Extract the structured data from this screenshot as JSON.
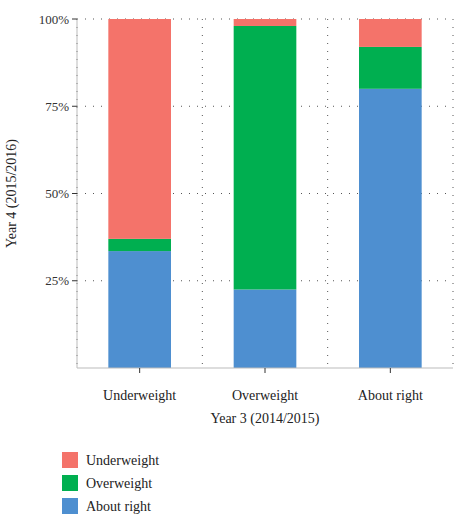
{
  "chart_data": {
    "type": "bar",
    "stacked": true,
    "x_label": "Year 3 (2014/2015)",
    "y_label": "Year 4 (2015/2016)",
    "categories": [
      "Underweight",
      "Overweight",
      "About right"
    ],
    "series": [
      {
        "name": "About right",
        "color": "#4e8fd0",
        "values": [
          33.5,
          22.5,
          80
        ]
      },
      {
        "name": "Overweight",
        "color": "#00af50",
        "values": [
          3.5,
          75.5,
          12
        ]
      },
      {
        "name": "Underweight",
        "color": "#f4736a",
        "values": [
          63,
          2,
          8
        ]
      }
    ],
    "ylim": [
      0,
      100
    ],
    "yticks": [
      {
        "value": 25,
        "label": "25%"
      },
      {
        "value": 50,
        "label": "50%"
      },
      {
        "value": 75,
        "label": "75%"
      },
      {
        "value": 100,
        "label": "100%"
      }
    ],
    "grid": true,
    "legend": "bottom"
  }
}
